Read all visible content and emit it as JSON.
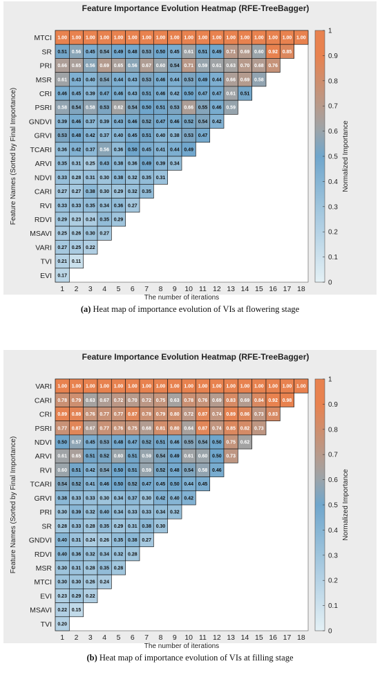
{
  "chart_data": [
    {
      "type": "heatmap",
      "title": "Feature Importance Evolution Heatmap (RFE-TreeBagger)",
      "xlabel": "The number of iterations",
      "ylabel": "Feature Names (Sorted by Final Importance)",
      "x": [
        1,
        2,
        3,
        4,
        5,
        6,
        7,
        8,
        9,
        10,
        11,
        12,
        13,
        14,
        15,
        16,
        17,
        18
      ],
      "colorbar": {
        "label": "Normalized Importance",
        "range": [
          0,
          1
        ],
        "ticks": [
          "0",
          "0.1",
          "0.2",
          "0.3",
          "0.4",
          "0.5",
          "0.6",
          "0.7",
          "0.8",
          "0.9",
          "1"
        ]
      },
      "colors": {
        "low": "#e4f0f5",
        "mid": "#6fa6cc",
        "neutral": "#a3a3a3",
        "high": "#e8824f"
      },
      "features": [
        "MTCI",
        "SR",
        "PRI",
        "MSR",
        "CRI",
        "PSRI",
        "GNDVI",
        "GRVI",
        "TCARI",
        "ARVI",
        "NDVI",
        "CARI",
        "RVI",
        "RDVI",
        "MSAVI",
        "VARI",
        "TVI",
        "EVI"
      ],
      "values": [
        [
          "1.00",
          "1.00",
          "1.00",
          "1.00",
          "1.00",
          "1.00",
          "1.00",
          "1.00",
          "1.00",
          "1.00",
          "1.00",
          "1.00",
          "1.00",
          "1.00",
          "1.00",
          "1.00",
          "1.00",
          "1.00"
        ],
        [
          "0.51",
          "0.56",
          "0.45",
          "0.54",
          "0.49",
          "0.48",
          "0.53",
          "0.50",
          "0.45",
          "0.61",
          "0.51",
          "0.49",
          "0.71",
          "0.69",
          "0.60",
          "0.92",
          "0.85"
        ],
        [
          "0.66",
          "0.65",
          "0.56",
          "0.69",
          "0.65",
          "0.56",
          "0.67",
          "0.60",
          "0.54",
          "0.71",
          "0.59",
          "0.61",
          "0.63",
          "0.70",
          "0.68",
          "0.76"
        ],
        [
          "0.61",
          "0.43",
          "0.40",
          "0.54",
          "0.44",
          "0.43",
          "0.53",
          "0.46",
          "0.44",
          "0.53",
          "0.49",
          "0.44",
          "0.66",
          "0.69",
          "0.58"
        ],
        [
          "0.46",
          "0.45",
          "0.39",
          "0.47",
          "0.46",
          "0.43",
          "0.51",
          "0.46",
          "0.42",
          "0.50",
          "0.47",
          "0.47",
          "0.61",
          "0.51"
        ],
        [
          "0.58",
          "0.54",
          "0.58",
          "0.53",
          "0.62",
          "0.54",
          "0.50",
          "0.51",
          "0.53",
          "0.66",
          "0.55",
          "0.46",
          "0.59"
        ],
        [
          "0.39",
          "0.46",
          "0.37",
          "0.39",
          "0.43",
          "0.46",
          "0.52",
          "0.47",
          "0.46",
          "0.52",
          "0.54",
          "0.42"
        ],
        [
          "0.53",
          "0.48",
          "0.42",
          "0.37",
          "0.40",
          "0.45",
          "0.51",
          "0.40",
          "0.38",
          "0.53",
          "0.47"
        ],
        [
          "0.36",
          "0.42",
          "0.37",
          "0.56",
          "0.36",
          "0.50",
          "0.45",
          "0.41",
          "0.44",
          "0.49"
        ],
        [
          "0.35",
          "0.31",
          "0.25",
          "0.43",
          "0.38",
          "0.36",
          "0.49",
          "0.39",
          "0.34"
        ],
        [
          "0.33",
          "0.28",
          "0.31",
          "0.30",
          "0.38",
          "0.32",
          "0.35",
          "0.31"
        ],
        [
          "0.27",
          "0.27",
          "0.38",
          "0.30",
          "0.29",
          "0.32",
          "0.35"
        ],
        [
          "0.33",
          "0.33",
          "0.35",
          "0.34",
          "0.36",
          "0.27"
        ],
        [
          "0.29",
          "0.23",
          "0.24",
          "0.35",
          "0.29"
        ],
        [
          "0.25",
          "0.26",
          "0.30",
          "0.27"
        ],
        [
          "0.27",
          "0.25",
          "0.22"
        ],
        [
          "0.21",
          "0.11"
        ],
        [
          "0.17"
        ]
      ]
    },
    {
      "type": "heatmap",
      "title": "Feature Importance Evolution Heatmap (RFE-TreeBagger)",
      "xlabel": "The number of iterations",
      "ylabel": "Feature Names (Sorted by Final Importance)",
      "x": [
        1,
        2,
        3,
        4,
        5,
        6,
        7,
        8,
        9,
        10,
        11,
        12,
        13,
        14,
        15,
        16,
        17,
        18
      ],
      "colorbar": {
        "label": "Normalized Importance",
        "range": [
          0,
          1
        ],
        "ticks": [
          "0",
          "0.1",
          "0.2",
          "0.3",
          "0.4",
          "0.5",
          "0.6",
          "0.7",
          "0.8",
          "0.9",
          "1"
        ]
      },
      "colors": {
        "low": "#e4f0f5",
        "mid": "#6fa6cc",
        "neutral": "#a3a3a3",
        "high": "#e8824f"
      },
      "features": [
        "VARI",
        "CARI",
        "CRI",
        "PSRI",
        "NDVI",
        "ARVI",
        "RVI",
        "TCARI",
        "GRVI",
        "PRI",
        "SR",
        "GNDVI",
        "RDVI",
        "MSR",
        "MTCI",
        "EVI",
        "MSAVI",
        "TVI"
      ],
      "values": [
        [
          "1.00",
          "1.00",
          "1.00",
          "1.00",
          "1.00",
          "1.00",
          "1.00",
          "1.00",
          "1.00",
          "1.00",
          "1.00",
          "1.00",
          "1.00",
          "1.00",
          "1.00",
          "1.00",
          "1.00",
          "1.00"
        ],
        [
          "0.78",
          "0.79",
          "0.63",
          "0.67",
          "0.72",
          "0.70",
          "0.72",
          "0.75",
          "0.63",
          "0.78",
          "0.76",
          "0.69",
          "0.83",
          "0.69",
          "0.84",
          "0.92",
          "0.98"
        ],
        [
          "0.89",
          "0.88",
          "0.76",
          "0.77",
          "0.77",
          "0.87",
          "0.78",
          "0.79",
          "0.80",
          "0.72",
          "0.87",
          "0.74",
          "0.89",
          "0.86",
          "0.73",
          "0.83"
        ],
        [
          "0.77",
          "0.87",
          "0.67",
          "0.77",
          "0.76",
          "0.75",
          "0.68",
          "0.81",
          "0.80",
          "0.64",
          "0.87",
          "0.74",
          "0.85",
          "0.82",
          "0.73"
        ],
        [
          "0.50",
          "0.57",
          "0.45",
          "0.53",
          "0.48",
          "0.47",
          "0.52",
          "0.51",
          "0.46",
          "0.55",
          "0.54",
          "0.50",
          "0.75",
          "0.62"
        ],
        [
          "0.61",
          "0.65",
          "0.51",
          "0.52",
          "0.60",
          "0.51",
          "0.59",
          "0.54",
          "0.49",
          "0.61",
          "0.60",
          "0.50",
          "0.73"
        ],
        [
          "0.60",
          "0.51",
          "0.42",
          "0.54",
          "0.50",
          "0.51",
          "0.59",
          "0.52",
          "0.48",
          "0.54",
          "0.58",
          "0.46"
        ],
        [
          "0.54",
          "0.52",
          "0.41",
          "0.46",
          "0.50",
          "0.52",
          "0.47",
          "0.45",
          "0.50",
          "0.44",
          "0.45"
        ],
        [
          "0.38",
          "0.33",
          "0.33",
          "0.30",
          "0.34",
          "0.37",
          "0.30",
          "0.42",
          "0.40",
          "0.42"
        ],
        [
          "0.30",
          "0.39",
          "0.32",
          "0.40",
          "0.34",
          "0.33",
          "0.33",
          "0.34",
          "0.32"
        ],
        [
          "0.28",
          "0.33",
          "0.28",
          "0.35",
          "0.29",
          "0.31",
          "0.38",
          "0.30"
        ],
        [
          "0.40",
          "0.31",
          "0.24",
          "0.26",
          "0.35",
          "0.38",
          "0.27"
        ],
        [
          "0.40",
          "0.36",
          "0.32",
          "0.34",
          "0.32",
          "0.28"
        ],
        [
          "0.30",
          "0.31",
          "0.28",
          "0.35",
          "0.28"
        ],
        [
          "0.30",
          "0.30",
          "0.26",
          "0.24"
        ],
        [
          "0.23",
          "0.29",
          "0.22"
        ],
        [
          "0.22",
          "0.15"
        ],
        [
          "0.20"
        ]
      ]
    }
  ],
  "captions": {
    "a_letter": "(a)",
    "a_text": " Heat map of importance evolution of VIs at flowering stage",
    "b_letter": "(b)",
    "b_text": " Heat map of importance evolution of VIs at filling stage"
  }
}
